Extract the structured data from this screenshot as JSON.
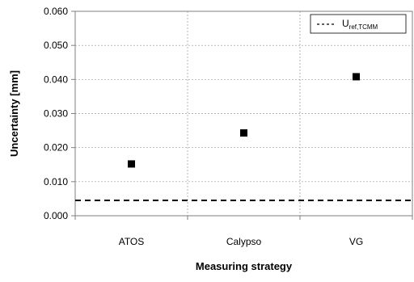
{
  "chart_data": {
    "type": "scatter",
    "categories": [
      "ATOS",
      "Calypso",
      "VG"
    ],
    "series": [
      {
        "values": [
          0.0152,
          0.0243,
          0.0408
        ],
        "color": "#000000",
        "marker": "square"
      }
    ],
    "reference_line": {
      "name_main": "U",
      "name_sub": "ref,TCMM",
      "value": 0.0045,
      "style": "dashed",
      "color": "#000000"
    },
    "xlabel": "Measuring strategy",
    "ylabel": "Uncertainty [mm]",
    "ylim": [
      0,
      0.06
    ],
    "yticks": [
      "0.000",
      "0.010",
      "0.020",
      "0.030",
      "0.040",
      "0.050",
      "0.060"
    ],
    "grid": true,
    "legend_position": "top-right",
    "gridline_color": "#999999",
    "axis_color": "#7f7f7f"
  }
}
